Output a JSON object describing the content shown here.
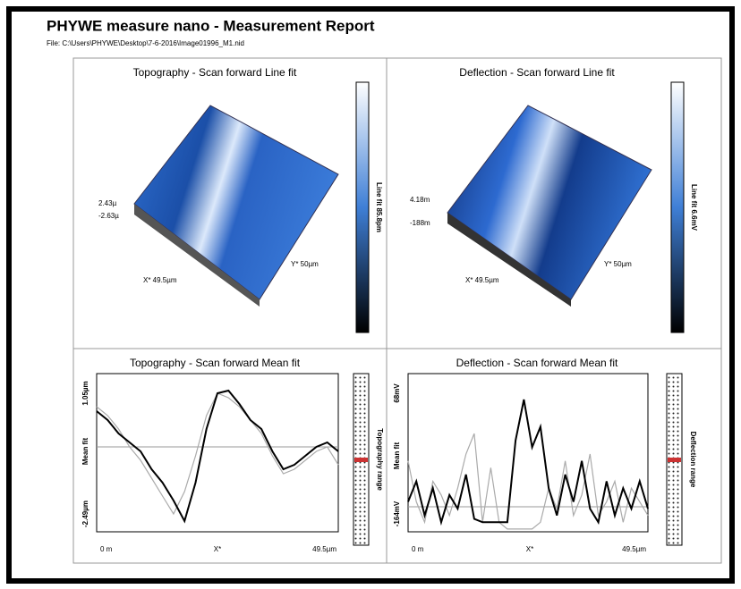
{
  "header": {
    "title": "PHYWE measure nano - Measurement Report",
    "file": "File: C:\\Users\\PHYWE\\Desktop\\7-6-2016\\Image01996_M1.nid"
  },
  "panels": [
    {
      "title": "Topography - Scan forward   Line fit",
      "colorbar_label": "Line fit 85.8pm",
      "z_top": "2.43µ",
      "z_bottom": "-2.63µ",
      "x_label": "X* 49.5µm",
      "y_label": "Y* 50µm"
    },
    {
      "title": "Deflection - Scan forward   Line fit",
      "colorbar_label": "Line fit 6.6mV",
      "z_top": "4.18m",
      "z_bottom": "-188m",
      "x_label": "X* 49.5µm",
      "y_label": "Y* 50µm"
    },
    {
      "title": "Topography - Scan forward   Mean fit",
      "y_top": "1.05µm",
      "y_mid": "Mean fit",
      "y_bottom": "-2.49µm",
      "x_left": "0 m",
      "x_mid": "X*",
      "x_right": "49.5µm",
      "range_label": "Topography range",
      "ylim": [
        -2.49,
        1.05
      ],
      "forward": [
        0.21,
        0.01,
        -0.29,
        -0.49,
        -0.69,
        -1.09,
        -1.39,
        -1.79,
        -2.25,
        -1.39,
        -0.19,
        0.61,
        0.67,
        0.37,
        0.01,
        -0.19,
        -0.69,
        -1.09,
        -0.99,
        -0.79,
        -0.59,
        -0.49,
        -0.69
      ],
      "backward": [
        0.31,
        0.11,
        -0.19,
        -0.59,
        -0.89,
        -1.29,
        -1.69,
        -2.09,
        -1.59,
        -0.79,
        0.11,
        0.61,
        0.51,
        0.31,
        0.01,
        -0.29,
        -0.79,
        -1.19,
        -1.09,
        -0.89,
        -0.69,
        -0.59,
        -0.99
      ]
    },
    {
      "title": "Deflection - Scan forward   Mean fit",
      "y_top": "68mV",
      "y_mid": "Mean fit",
      "y_bottom": "-164mV",
      "x_left": "0 m",
      "x_mid": "X*",
      "x_right": "49.5µm",
      "range_label": "Deflection range",
      "ylim": [
        -164,
        68
      ],
      "forward": [
        -120,
        -90,
        -140,
        -100,
        -150,
        -110,
        -130,
        -80,
        -145,
        -150,
        -150,
        -150,
        -150,
        -30,
        30,
        -40,
        -10,
        -100,
        -140,
        -80,
        -120,
        -60,
        -130,
        -150,
        -90,
        -140,
        -100,
        -130,
        -90,
        -130
      ],
      "backward": [
        -60,
        -120,
        -150,
        -90,
        -110,
        -140,
        -100,
        -50,
        -20,
        -150,
        -70,
        -150,
        -160,
        -160,
        -160,
        -160,
        -150,
        -100,
        -130,
        -60,
        -140,
        -110,
        -50,
        -140,
        -120,
        -90,
        -150,
        -100,
        -120,
        -140
      ]
    }
  ]
}
